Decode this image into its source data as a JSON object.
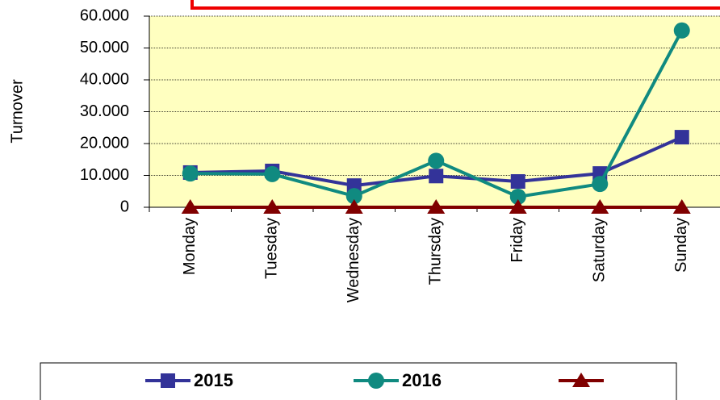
{
  "chart_data": {
    "type": "line",
    "y_label": "Turnover",
    "categories": [
      "Monday",
      "Tuesday",
      "Wednesday",
      "Thursday",
      "Friday",
      "Saturday",
      "Sunday"
    ],
    "series": [
      {
        "name": "2015",
        "color": "#333399",
        "marker": "square",
        "values": [
          10900,
          11400,
          6800,
          9800,
          8100,
          10600,
          22000
        ]
      },
      {
        "name": "2016",
        "color": "#108a80",
        "marker": "circle",
        "values": [
          10600,
          10400,
          3500,
          14600,
          3300,
          7300,
          55500
        ]
      },
      {
        "name": null,
        "color": "#800000",
        "marker": "triangle",
        "values": [
          0,
          0,
          0,
          0,
          0,
          0,
          0
        ]
      }
    ],
    "ylim": [
      0,
      60000
    ],
    "yticks": [
      0,
      {
        "value": 10000,
        "label": "10.000"
      },
      {
        "value": 20000,
        "label": "20.000"
      },
      {
        "value": 30000,
        "label": "30.000"
      },
      {
        "value": 40000,
        "label": "40.000"
      },
      {
        "value": 50000,
        "label": "50.000"
      },
      {
        "value": 60000,
        "label": "60.000"
      }
    ],
    "grid": true,
    "legend": "bottom"
  }
}
